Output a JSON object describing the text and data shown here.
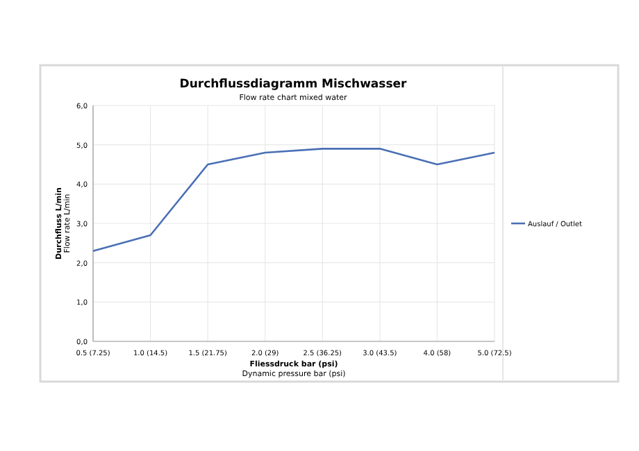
{
  "chart_data": {
    "type": "line",
    "title": "Durchflussdiagramm Mischwasser",
    "subtitle": "Flow rate chart mixed water",
    "xlabel": "Fliessdruck bar (psi)\nDynamic pressure bar (psi)",
    "ylabel": "Durchfluss L/min\nFlow rate L/min",
    "categories": [
      "0.5 (7.25)",
      "1.0 (14.5)",
      "1.5 (21.75)",
      "2.0 (29)",
      "2.5 (36.25)",
      "3.0 (43.5)",
      "4.0 (58)",
      "5.0 (72.5)"
    ],
    "series": [
      {
        "name": "Auslauf / Outlet",
        "color": "#4a6fb5",
        "values": [
          2.3,
          2.7,
          4.5,
          4.8,
          4.9,
          4.9,
          4.5,
          4.8
        ]
      }
    ],
    "ylim": [
      0,
      6
    ],
    "yticks": [
      {
        "value": 0,
        "label": "0,0"
      },
      {
        "value": 1,
        "label": "1,0"
      },
      {
        "value": 2,
        "label": "2,0"
      },
      {
        "value": 3,
        "label": "3,0"
      },
      {
        "value": 4,
        "label": "4,0"
      },
      {
        "value": 5,
        "label": "5,0"
      },
      {
        "value": 6,
        "label": "6,0"
      }
    ],
    "grid": true,
    "legend": "right",
    "marker": "none",
    "line_style": "solid"
  }
}
